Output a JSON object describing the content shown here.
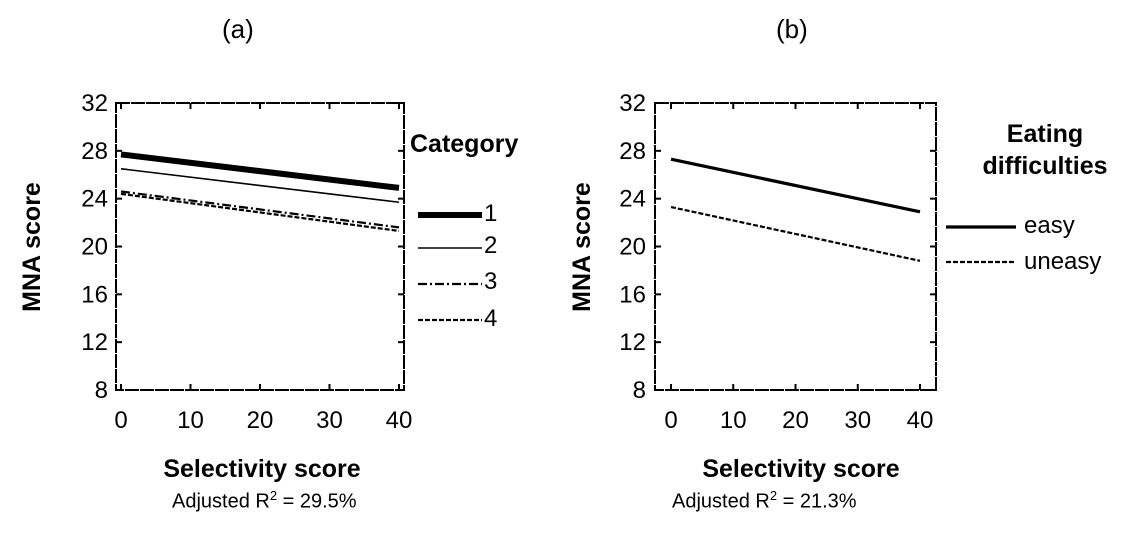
{
  "panels": [
    {
      "label": "(a)",
      "note_prefix": "Adjusted R",
      "note_sup": "2",
      "note_suffix": " = 29.5%"
    },
    {
      "label": "(b)",
      "note_prefix": "Adjusted R",
      "note_sup": "2",
      "note_suffix": " = 21.3%"
    }
  ],
  "chart_data": [
    {
      "type": "line",
      "title": "(a)",
      "xlabel": "Selectivity score",
      "ylabel": "MNA score",
      "xlim": [
        0,
        40
      ],
      "ylim": [
        8,
        32
      ],
      "xticks": [
        "0",
        "10",
        "20",
        "30",
        "40"
      ],
      "yticks": [
        "8",
        "12",
        "16",
        "20",
        "24",
        "28",
        "32"
      ],
      "legend_title": "Category",
      "legend_position": "right",
      "series": [
        {
          "name": "1",
          "style": "thick-solid",
          "x": [
            0,
            40
          ],
          "y": [
            27.7,
            24.9
          ]
        },
        {
          "name": "2",
          "style": "thin-solid",
          "x": [
            0,
            40
          ],
          "y": [
            26.5,
            23.7
          ]
        },
        {
          "name": "3",
          "style": "dash-dot",
          "x": [
            0,
            40
          ],
          "y": [
            24.6,
            21.6
          ]
        },
        {
          "name": "4",
          "style": "dashed",
          "x": [
            0,
            40
          ],
          "y": [
            24.4,
            21.3
          ]
        }
      ],
      "annotation": "Adjusted R2 = 29.5%"
    },
    {
      "type": "line",
      "title": "(b)",
      "xlabel": "Selectivity score",
      "ylabel": "MNA score",
      "xlim": [
        0,
        40
      ],
      "ylim": [
        8,
        32
      ],
      "xticks": [
        "0",
        "10",
        "20",
        "30",
        "40"
      ],
      "yticks": [
        "8",
        "12",
        "16",
        "20",
        "24",
        "28",
        "32"
      ],
      "legend_title_lines": [
        "Eating",
        "difficulties"
      ],
      "legend_position": "right",
      "series": [
        {
          "name": "easy",
          "style": "solid",
          "x": [
            0,
            40
          ],
          "y": [
            27.3,
            22.9
          ]
        },
        {
          "name": "uneasy",
          "style": "dashed",
          "x": [
            0,
            40
          ],
          "y": [
            23.3,
            18.8
          ]
        }
      ],
      "annotation": "Adjusted R2 = 21.3%"
    }
  ]
}
